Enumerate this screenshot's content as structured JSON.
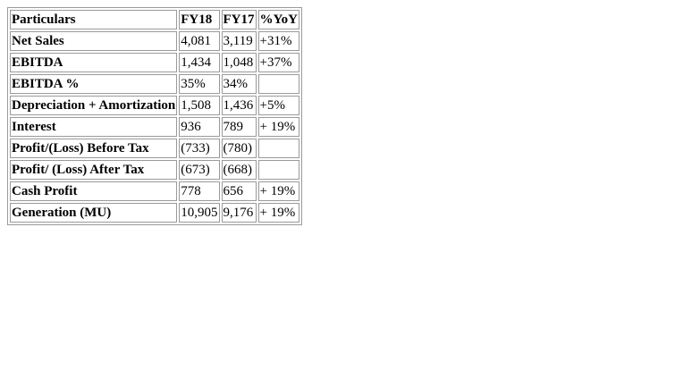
{
  "table": {
    "headers": [
      "Particulars",
      "FY18",
      "FY17",
      "%YoY"
    ],
    "rows": [
      {
        "label": "Net Sales",
        "fy18": "4,081",
        "fy17": "3,119",
        "yoy": "+31%"
      },
      {
        "label": "EBITDA",
        "fy18": "1,434",
        "fy17": "1,048",
        "yoy": "+37%"
      },
      {
        "label": "EBITDA %",
        "fy18": "35%",
        "fy17": "34%",
        "yoy": ""
      },
      {
        "label": "Depreciation + Amortization",
        "fy18": "1,508",
        "fy17": "1,436",
        "yoy": "+5%"
      },
      {
        "label": "Interest",
        "fy18": "936",
        "fy17": "789",
        "yoy": "+ 19%"
      },
      {
        "label": "Profit/(Loss) Before Tax",
        "fy18": "(733)",
        "fy17": "(780)",
        "yoy": ""
      },
      {
        "label": "Profit/ (Loss) After Tax",
        "fy18": "(673)",
        "fy17": "(668)",
        "yoy": ""
      },
      {
        "label": "Cash Profit",
        "fy18": "778",
        "fy17": "656",
        "yoy": "+ 19%"
      },
      {
        "label": "Generation (MU)",
        "fy18": "10,905",
        "fy17": "9,176",
        "yoy": "+ 19%"
      }
    ]
  }
}
